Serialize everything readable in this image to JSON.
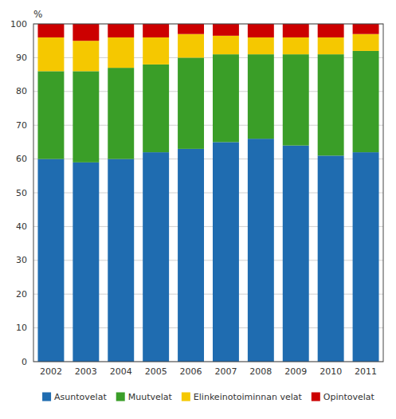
{
  "chart_data": {
    "type": "bar",
    "stacked": true,
    "ylabel": "%",
    "categories": [
      "2002",
      "2003",
      "2004",
      "2005",
      "2006",
      "2007",
      "2008",
      "2009",
      "2010",
      "2011"
    ],
    "series": [
      {
        "name": "Asuntovelat",
        "color": "#1f6cb0",
        "values": [
          60.0,
          59.0,
          60.0,
          62.0,
          63.0,
          65.0,
          66.0,
          64.0,
          61.0,
          62.0
        ]
      },
      {
        "name": "Muutvelat",
        "color": "#3a9e28",
        "values": [
          26.0,
          27.0,
          27.0,
          26.0,
          27.0,
          26.0,
          25.0,
          27.0,
          30.0,
          30.0
        ]
      },
      {
        "name": "Elinkeinotoiminnan velat",
        "color": "#f5c800",
        "values": [
          10.0,
          9.0,
          9.0,
          8.0,
          7.0,
          5.5,
          5.0,
          5.0,
          5.0,
          5.0
        ]
      },
      {
        "name": "Opintovelat",
        "color": "#cc0000",
        "values": [
          4.0,
          5.0,
          4.0,
          4.0,
          3.0,
          3.5,
          4.0,
          4.0,
          4.0,
          3.0
        ]
      }
    ],
    "ylim": [
      0,
      100
    ],
    "yticks": [
      0,
      10,
      20,
      30,
      40,
      50,
      60,
      70,
      80,
      90,
      100
    ],
    "grid": true,
    "legend": "bottom"
  }
}
